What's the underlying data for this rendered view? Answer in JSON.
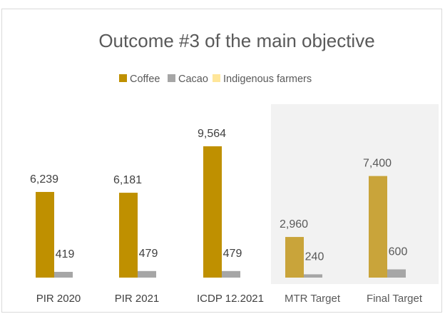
{
  "chart_data": {
    "type": "bar",
    "title": "Outcome #3 of the main objective",
    "xlabel": "",
    "ylabel": "",
    "ylim": [
      0,
      10000
    ],
    "grid": false,
    "legend_position": "top",
    "categories": [
      "PIR 2020",
      "PIR 2021",
      "ICDP 12.2021",
      "MTR Target",
      "Final Target"
    ],
    "highlighted_categories": [
      "MTR Target",
      "Final Target"
    ],
    "series": [
      {
        "name": "Coffee",
        "values": [
          6239,
          6181,
          9564,
          2960,
          7400
        ],
        "labels": [
          "6,239",
          "6,181",
          "9,564",
          "2,960",
          "7,400"
        ]
      },
      {
        "name": "Cacao",
        "values": [
          419,
          479,
          479,
          240,
          600
        ],
        "labels": [
          "419",
          "479",
          "479",
          "240",
          "600"
        ]
      },
      {
        "name": "Indigenous farmers",
        "values": [
          0,
          0,
          0,
          0,
          0
        ],
        "labels": [
          "",
          "",
          "",
          "",
          ""
        ]
      }
    ],
    "colors": {
      "Coffee": "#bf9000",
      "Coffee_target": "#c9a43a",
      "Cacao": "#a6a6a6",
      "Cacao_target": "#a6a6a6",
      "Indigenous farmers": "#ffe699",
      "target_background": "#f2f2f2"
    }
  }
}
